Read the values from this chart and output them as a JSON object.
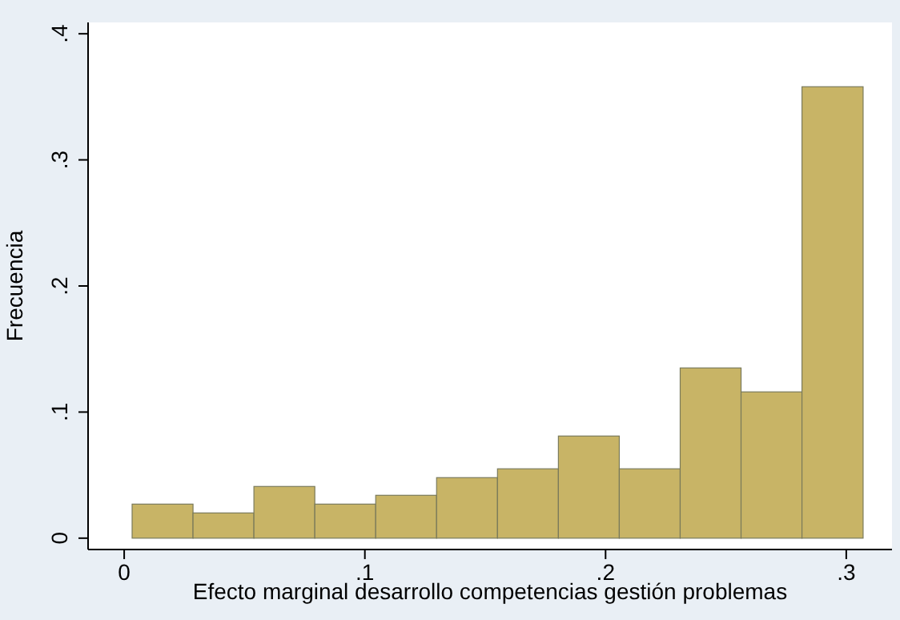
{
  "chart_data": {
    "type": "histogram",
    "xlabel": "Efecto marginal desarrollo competencias gestión problemas",
    "ylabel": "Frecuencia",
    "bins": [
      0.0033,
      0.0286,
      0.0539,
      0.0792,
      0.1045,
      0.1298,
      0.1551,
      0.1804,
      0.2057,
      0.231,
      0.2563,
      0.2816,
      0.307
    ],
    "values": [
      0.027,
      0.02,
      0.041,
      0.027,
      0.034,
      0.048,
      0.055,
      0.081,
      0.055,
      0.135,
      0.116,
      0.358
    ],
    "color": "#c8b466",
    "xlim": [
      -0.015,
      0.319
    ],
    "ylim": [
      -0.009,
      0.409
    ],
    "xticks": [
      {
        "value": 0,
        "label": "0"
      },
      {
        "value": 0.1,
        "label": ".1"
      },
      {
        "value": 0.2,
        "label": ".2"
      },
      {
        "value": 0.3,
        "label": ".3"
      }
    ],
    "yticks": [
      {
        "value": 0,
        "label": "0"
      },
      {
        "value": 0.1,
        "label": ".1"
      },
      {
        "value": 0.2,
        "label": ".2"
      },
      {
        "value": 0.3,
        "label": ".3"
      },
      {
        "value": 0.4,
        "label": ".4"
      }
    ],
    "grid": false
  }
}
